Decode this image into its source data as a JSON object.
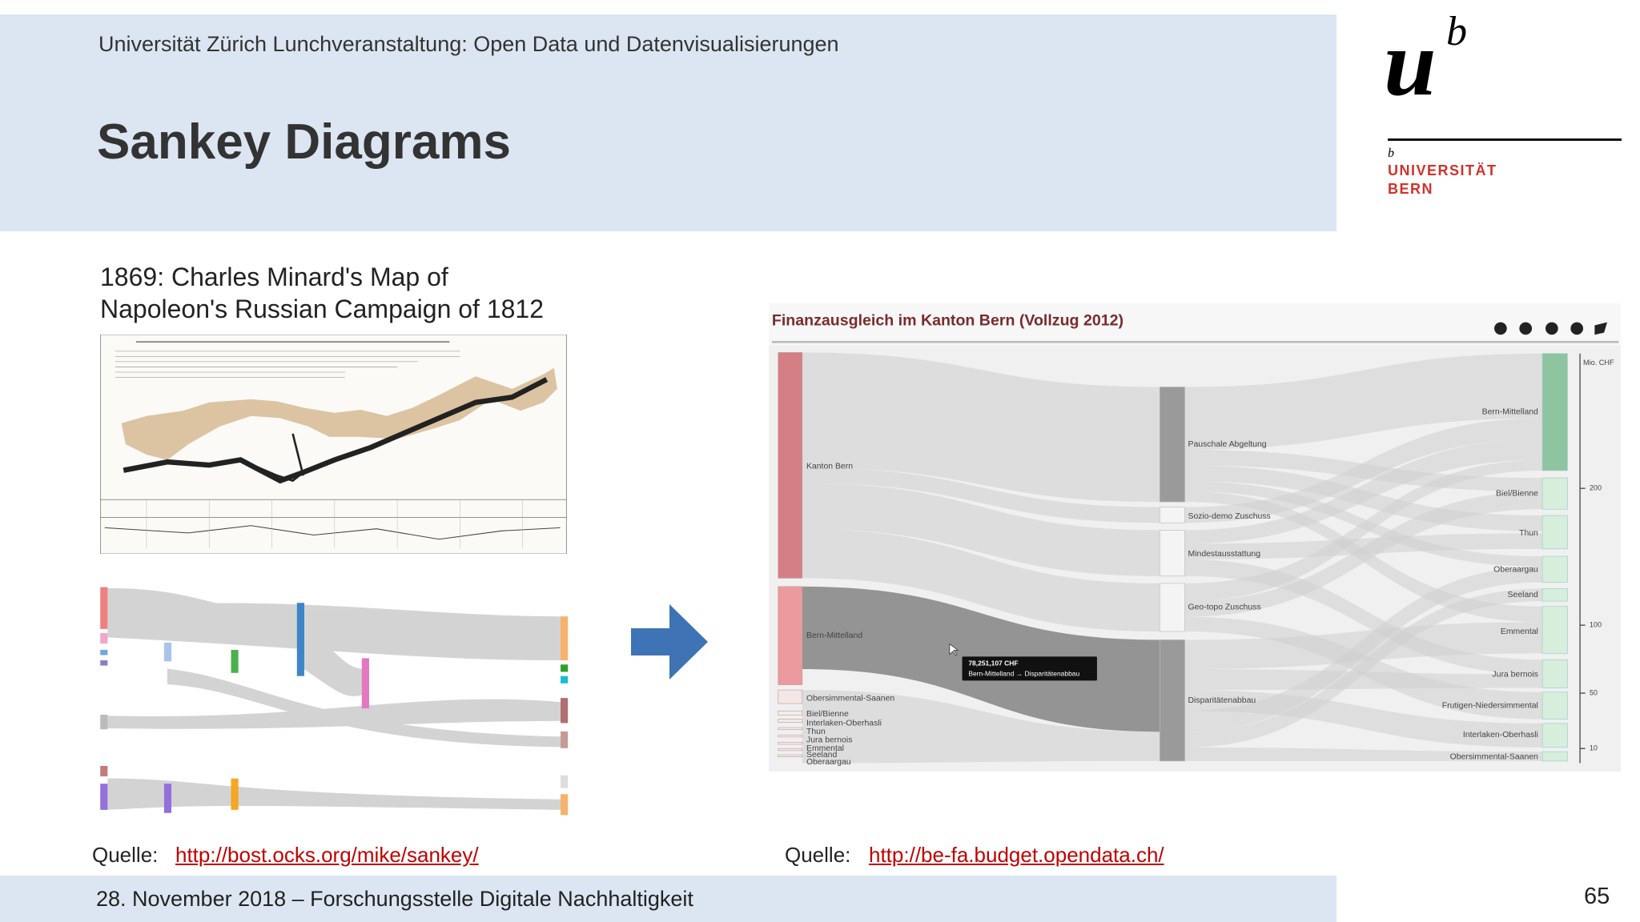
{
  "header": {
    "subtitle": "Universität Zürich Lunchveranstaltung: Open Data und Datenvisualisierungen",
    "title": "Sankey Diagrams"
  },
  "logo": {
    "mark_u": "u",
    "mark_b": "b",
    "small_b": "b",
    "name_line1": "UNIVERSITÄT",
    "name_line2": "BERN"
  },
  "left": {
    "heading_line1": "1869: Charles Minard's Map of",
    "heading_line2": "Napoleon's Russian Campaign of 1812",
    "source_label": "Quelle:",
    "source_link": "http://bost.ocks.org/mike/sankey/"
  },
  "right": {
    "source_label": "Quelle:",
    "source_link": "http://be-fa.budget.opendata.ch/",
    "embedded_chart": {
      "title": "Finanzausgleich im Kanton Bern (Vollzug 2012)",
      "source_nodes": [
        "Kanton Bern",
        "Bern-Mittelland",
        "Obersimmental-Saanen",
        "Biel/Bienne",
        "Interlaken-Oberhasli",
        "Thun",
        "Jura bernois",
        "Emmental",
        "Seeland",
        "Oberaargau"
      ],
      "middle_nodes": [
        "Pauschale Abgeltung",
        "Sozio-demo Zuschuss",
        "Mindestausstattung",
        "Geo-topo Zuschuss",
        "Disparitätenabbau"
      ],
      "target_nodes": [
        "Bern-Mittelland",
        "Biel/Bienne",
        "Thun",
        "Oberaargau",
        "Seeland",
        "Emmental",
        "Jura bernois",
        "Frutigen-Niedersimmental",
        "Interlaken-Oberhasli",
        "Obersimmental-Saanen"
      ],
      "axis_unit": "Mio. CHF",
      "axis_ticks": [
        200,
        100,
        50,
        10
      ],
      "tooltip_value": "78,251,107 CHF",
      "tooltip_flow": "Bern-Mittelland → Disparitätenabbau"
    }
  },
  "footer": {
    "text": "28. November 2018 – Forschungsstelle Digitale Nachhaltigkeit",
    "page_number": "65"
  }
}
